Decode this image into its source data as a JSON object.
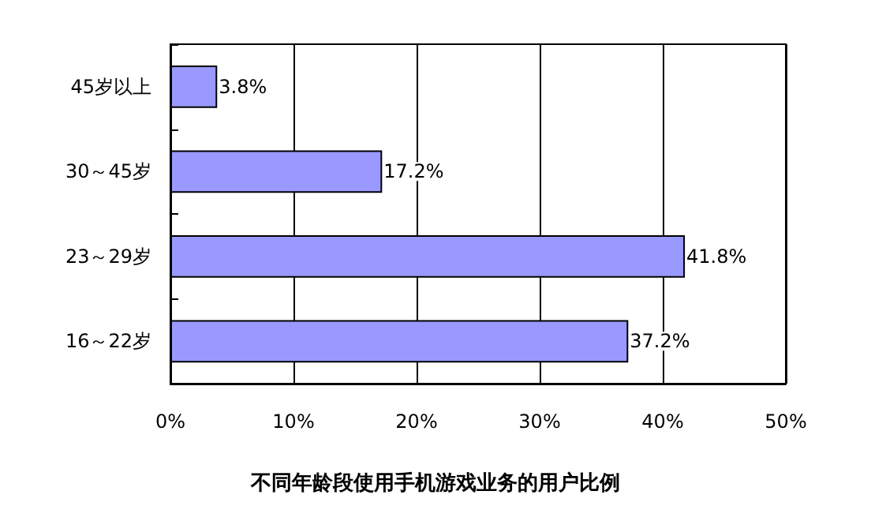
{
  "chart_data": {
    "type": "bar",
    "orientation": "horizontal",
    "title": "不同年龄段使用手机游戏业务的用户比例",
    "categories": [
      "45岁以上",
      "30～45岁",
      "23～29岁",
      "16～22岁"
    ],
    "values": [
      3.8,
      17.2,
      41.8,
      37.2
    ],
    "color": "#9999ff",
    "value_labels": [
      "3.8%",
      "17.2%",
      "41.8%",
      "37.2%"
    ],
    "xlim": [
      0,
      50
    ],
    "xticks": [
      {
        "value": 0,
        "label": "0%"
      },
      {
        "value": 10,
        "label": "10%"
      },
      {
        "value": 20,
        "label": "20%"
      },
      {
        "value": 30,
        "label": "30%"
      },
      {
        "value": 40,
        "label": "40%"
      },
      {
        "value": 50,
        "label": "50%"
      }
    ],
    "grid": "x"
  }
}
